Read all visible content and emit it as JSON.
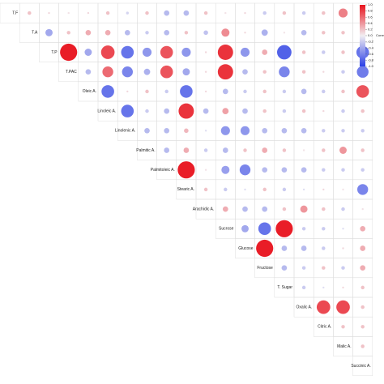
{
  "chart_data": {
    "type": "corrplot",
    "variables": [
      "T.F",
      "T.A",
      "T.P",
      "T.PAC",
      "Oleic A.",
      "Linoleic A.",
      "Linolenic A.",
      "Palmitic A.",
      "Palmitoleic A.",
      "Stearic A.",
      "Arachidic A.",
      "Sucrose",
      "Glucose",
      "Fructose",
      "T. Sugar",
      "Oxalic A.",
      "Citric A.",
      "Malic A.",
      "Succinic A."
    ],
    "matrix": [
      [
        0.2,
        0.1,
        0.05,
        0.1,
        0.2,
        -0.15,
        0.2,
        -0.3,
        -0.3,
        0.2,
        0.05,
        0.1,
        -0.2,
        0.2,
        -0.2,
        0.2,
        0.5,
        0.2
      ],
      [
        -0.4,
        0.2,
        0.3,
        0.3,
        -0.3,
        -0.2,
        -0.3,
        0.2,
        -0.25,
        0.45,
        0.1,
        -0.35,
        0.05,
        -0.3,
        0.2,
        0.2,
        -0.2
      ],
      [
        0.95,
        -0.4,
        0.75,
        -0.7,
        -0.5,
        0.7,
        -0.5,
        0.1,
        0.85,
        -0.5,
        0.3,
        -0.8,
        0.2,
        -0.2,
        0.2,
        -0.7
      ],
      [
        -0.3,
        0.6,
        -0.6,
        -0.35,
        0.7,
        -0.4,
        0.1,
        0.85,
        -0.3,
        0.2,
        -0.6,
        0.2,
        0.1,
        -0.2,
        -0.65
      ],
      [
        -0.7,
        0.1,
        0.2,
        -0.2,
        -0.7,
        0.1,
        -0.3,
        -0.2,
        0.2,
        -0.2,
        -0.3,
        -0.2,
        0.2,
        0.7
      ],
      [
        -0.7,
        -0.2,
        -0.3,
        0.85,
        -0.3,
        0.35,
        -0.3,
        0.2,
        -0.2,
        0.2,
        0.1,
        -0.2,
        0.2
      ],
      [
        -0.3,
        -0.3,
        0.25,
        -0.1,
        -0.5,
        -0.5,
        -0.3,
        -0.3,
        -0.3,
        -0.2,
        -0.2,
        -0.2
      ],
      [
        -0.3,
        0.3,
        -0.2,
        -0.3,
        0.2,
        0.3,
        0.2,
        0.05,
        0.2,
        0.4,
        0.2
      ],
      [
        0.95,
        0.05,
        -0.45,
        -0.6,
        -0.3,
        -0.3,
        -0.3,
        -0.2,
        -0.2,
        -0.2
      ],
      [
        0.2,
        -0.2,
        -0.1,
        0.2,
        -0.2,
        -0.1,
        0.1,
        0.05,
        -0.6
      ],
      [
        0.3,
        -0.3,
        -0.3,
        0.2,
        0.4,
        0.2,
        -0.2,
        0.05
      ],
      [
        -0.4,
        -0.7,
        0.95,
        -0.2,
        -0.2,
        -0.1,
        0.3
      ],
      [
        0.95,
        -0.3,
        -0.3,
        -0.2,
        0.1,
        0.3
      ],
      [
        -0.3,
        -0.2,
        0.2,
        -0.2,
        0.3
      ],
      [
        -0.2,
        -0.1,
        0.1,
        0.2
      ],
      [
        0.75,
        0.75,
        0.2
      ],
      [
        0.2,
        0.2
      ],
      [
        0.2
      ],
      []
    ],
    "colors": {
      "low": "#2a3fe6",
      "mid": "#f2eef2",
      "high": "#e8121c"
    },
    "legend_title": "Correlation",
    "legend_lim": [
      -1,
      1
    ],
    "legend_ticks": [
      {
        "value": 1,
        "label": "1.0"
      },
      {
        "value": 0.8,
        "label": "0.8"
      },
      {
        "value": 0.6,
        "label": "0.6"
      },
      {
        "value": 0.4,
        "label": "0.4"
      },
      {
        "value": 0.2,
        "label": "0.2"
      },
      {
        "value": 0,
        "label": "0.0"
      },
      {
        "value": -0.2,
        "label": "-0.2"
      },
      {
        "value": -0.4,
        "label": "-0.4"
      },
      {
        "value": -0.6,
        "label": "-0.6"
      },
      {
        "value": -0.8,
        "label": "-0.8"
      },
      {
        "value": -1,
        "label": "-1.0"
      }
    ]
  }
}
